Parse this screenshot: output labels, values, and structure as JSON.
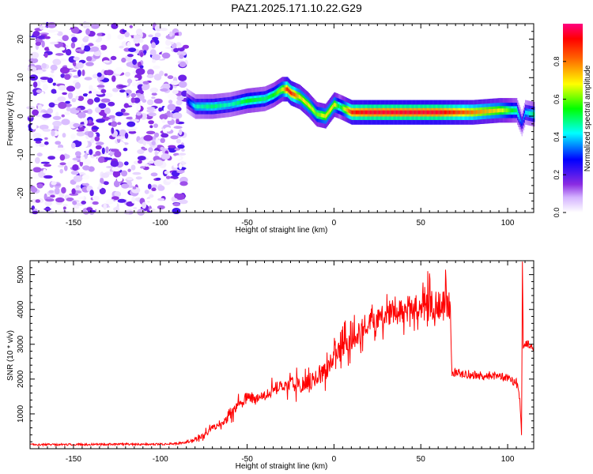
{
  "title": "PAZ1.2025.171.10.22.G29",
  "chart_data": [
    {
      "type": "heatmap",
      "xlabel": "Height of straight line (km)",
      "ylabel": "Frequency (Hz)",
      "xlim": [
        -175,
        115
      ],
      "ylim": [
        -25,
        24
      ],
      "xticks": [
        -150,
        -100,
        -50,
        0,
        50,
        100
      ],
      "yticks": [
        -20,
        -10,
        0,
        10,
        20
      ],
      "colorbar": {
        "label": "Normalized spectral amplitude",
        "range": [
          0,
          1
        ],
        "ticks": [
          0.0,
          0.2,
          0.4,
          0.6,
          0.8
        ],
        "tick_labels": [
          "0.0",
          "0.2",
          "0.4",
          "0.6",
          "0.8"
        ],
        "colormap": [
          "#ffffff",
          "#8a2be2",
          "#0000ff",
          "#00ffff",
          "#00ff00",
          "#ffff00",
          "#ff8000",
          "#ff0000",
          "#ff0080"
        ]
      },
      "noise_region_x": [
        -175,
        -85
      ],
      "ridge": {
        "x": [
          -85,
          -80,
          -70,
          -60,
          -50,
          -40,
          -35,
          -30,
          -27,
          -25,
          -20,
          -15,
          -10,
          -5,
          0,
          3,
          10,
          20,
          40,
          60,
          80,
          95,
          100,
          105,
          108,
          110,
          115
        ],
        "freq": [
          4,
          2.5,
          2.5,
          3,
          4,
          4.5,
          5.5,
          7,
          7,
          6,
          5,
          3,
          0.5,
          0,
          3,
          2.5,
          1,
          1,
          1,
          1,
          1,
          1.5,
          1.5,
          1.5,
          -2,
          1,
          0.5
        ],
        "amplitude": [
          0.25,
          0.45,
          0.5,
          0.45,
          0.55,
          0.5,
          0.55,
          0.65,
          0.9,
          0.9,
          0.7,
          0.7,
          0.6,
          0.7,
          0.7,
          0.5,
          0.9,
          0.95,
          0.95,
          0.95,
          0.8,
          0.7,
          0.6,
          0.5,
          0.3,
          0.4,
          0.5
        ]
      }
    },
    {
      "type": "line",
      "xlabel": "Height of straight line (km)",
      "ylabel": "SNR (10 * v/v)",
      "xlim": [
        -175,
        115
      ],
      "ylim": [
        0,
        5400
      ],
      "xticks": [
        -150,
        -100,
        -50,
        0,
        50,
        100
      ],
      "yticks": [
        1000,
        2000,
        3000,
        4000,
        5000
      ],
      "color": "#ff0000",
      "series": [
        {
          "x": [
            -175,
            -150,
            -120,
            -100,
            -90,
            -85,
            -80,
            -75,
            -70,
            -65,
            -60,
            -55,
            -50,
            -45,
            -40,
            -35,
            -30,
            -25,
            -20,
            -15,
            -10,
            -5,
            0,
            5,
            10,
            20,
            30,
            40,
            50,
            55,
            60,
            65,
            67,
            68,
            75,
            85,
            95,
            100,
            105,
            107,
            108,
            108.5,
            109,
            110,
            112,
            115
          ],
          "y": [
            120,
            120,
            130,
            130,
            150,
            180,
            250,
            400,
            600,
            700,
            900,
            1300,
            1500,
            1400,
            1500,
            1700,
            1800,
            1900,
            1800,
            1900,
            2000,
            2200,
            2700,
            2900,
            3100,
            3600,
            3900,
            4000,
            4050,
            4100,
            4150,
            4100,
            4100,
            2200,
            2150,
            2100,
            2100,
            2050,
            1900,
            1500,
            300,
            5400,
            2900,
            3050,
            3000,
            2900
          ]
        }
      ]
    }
  ]
}
